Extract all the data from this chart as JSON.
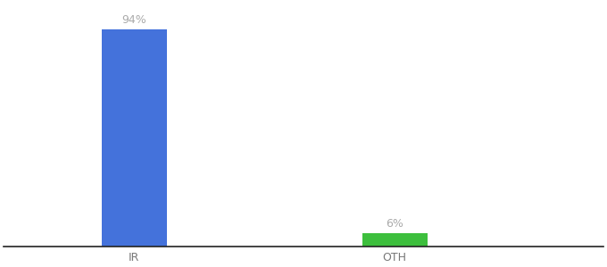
{
  "categories": [
    "IR",
    "OTH"
  ],
  "values": [
    94,
    6
  ],
  "bar_colors": [
    "#4472db",
    "#3dbf3d"
  ],
  "value_labels": [
    "94%",
    "6%"
  ],
  "ylim": [
    0,
    105
  ],
  "background_color": "#ffffff",
  "label_fontsize": 9,
  "tick_fontsize": 9,
  "bar_width": 0.25,
  "x_positions": [
    1,
    2
  ],
  "xlim": [
    0.5,
    2.8
  ],
  "label_color": "#aaaaaa",
  "tick_color": "#777777"
}
